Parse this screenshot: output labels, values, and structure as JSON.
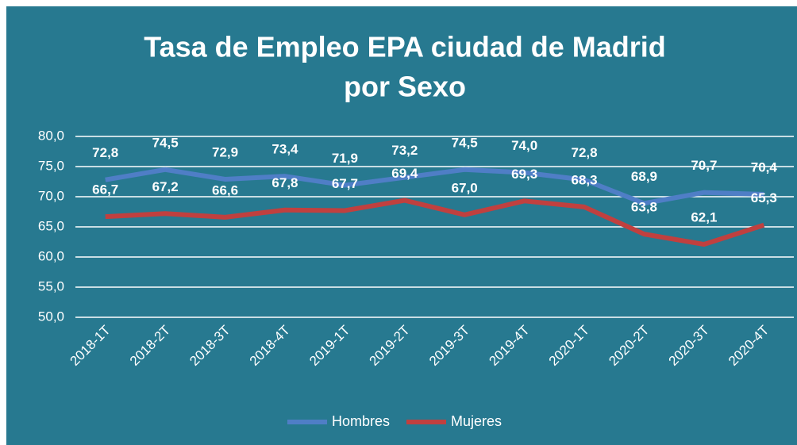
{
  "chart_data": {
    "type": "line",
    "title": [
      "Tasa de Empleo EPA ciudad de Madrid",
      "por Sexo"
    ],
    "categories": [
      "2018-1T",
      "2018-2T",
      "2018-3T",
      "2018-4T",
      "2019-1T",
      "2019-2T",
      "2019-3T",
      "2019-4T",
      "2020-1T",
      "2020-2T",
      "2020-3T",
      "2020-4T"
    ],
    "series": [
      {
        "name": "Hombres",
        "color": "#4f7ec6",
        "values": [
          72.8,
          74.5,
          72.9,
          73.4,
          71.9,
          73.2,
          74.5,
          74.0,
          72.8,
          68.9,
          70.7,
          70.4
        ],
        "value_labels": [
          "72,8",
          "74,5",
          "72,9",
          "73,4",
          "71,9",
          "73,2",
          "74,5",
          "74,0",
          "72,8",
          "68,9",
          "70,7",
          "70,4"
        ]
      },
      {
        "name": "Mujeres",
        "color": "#c0403f",
        "values": [
          66.7,
          67.2,
          66.6,
          67.8,
          67.7,
          69.4,
          67.0,
          69.3,
          68.3,
          63.8,
          62.1,
          65.3
        ],
        "value_labels": [
          "66,7",
          "67,2",
          "66,6",
          "67,8",
          "67,7",
          "69,4",
          "67,0",
          "69,3",
          "68,3",
          "63,8",
          "62,1",
          "65,3"
        ]
      }
    ],
    "ylim": [
      50,
      80
    ],
    "yticks": [
      {
        "value": 50,
        "label": "50,0"
      },
      {
        "value": 55,
        "label": "55,0"
      },
      {
        "value": 60,
        "label": "60,0"
      },
      {
        "value": 65,
        "label": "65,0"
      },
      {
        "value": 70,
        "label": "70,0"
      },
      {
        "value": 75,
        "label": "75,0"
      },
      {
        "value": 80,
        "label": "80,0"
      }
    ],
    "grid": true,
    "legend": "bottom"
  }
}
